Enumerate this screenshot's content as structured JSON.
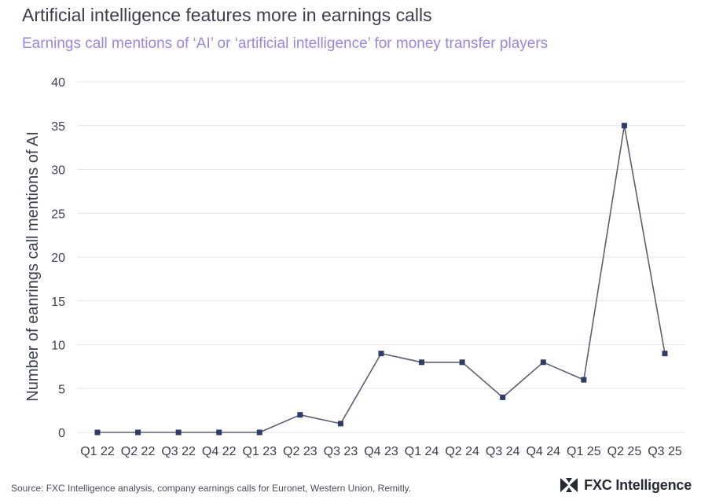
{
  "title": "Artificial intelligence features more in earnings calls",
  "subtitle": "Earnings call mentions of ‘AI’ or ‘artificial intelligence’ for money transfer players",
  "source": "Source: FXC Intelligence analysis, company earnings calls for Euronet, Western Union, Remitly.",
  "brand": {
    "name": "FXC Intelligence",
    "logo_icon": "fxc-logo-icon"
  },
  "chart_data": {
    "type": "line",
    "ylabel": "Number of eanrings call mentions of AI",
    "xlabel": "",
    "categories": [
      "Q1 22",
      "Q2 22",
      "Q3 22",
      "Q4 22",
      "Q1 23",
      "Q2 23",
      "Q3 23",
      "Q4 23",
      "Q1 24",
      "Q2 24",
      "Q3 24",
      "Q4 24",
      "Q1 25",
      "Q2 25",
      "Q3 25"
    ],
    "series": [
      {
        "values": [
          0,
          0,
          0,
          0,
          0,
          2,
          1,
          9,
          8,
          8,
          4,
          8,
          6,
          35,
          9
        ]
      }
    ],
    "ylim": [
      0,
      40
    ],
    "yticks": [
      0,
      5,
      10,
      15,
      20,
      25,
      30,
      35,
      40
    ],
    "grid": true,
    "marker": "square",
    "colors": {
      "line": "#5b6070",
      "marker": "#2f3d66",
      "grid": "#e6e6ea",
      "axis_text": "#3a3f4a",
      "title": "#3a3f4a",
      "subtitle": "#9b87e0"
    }
  }
}
